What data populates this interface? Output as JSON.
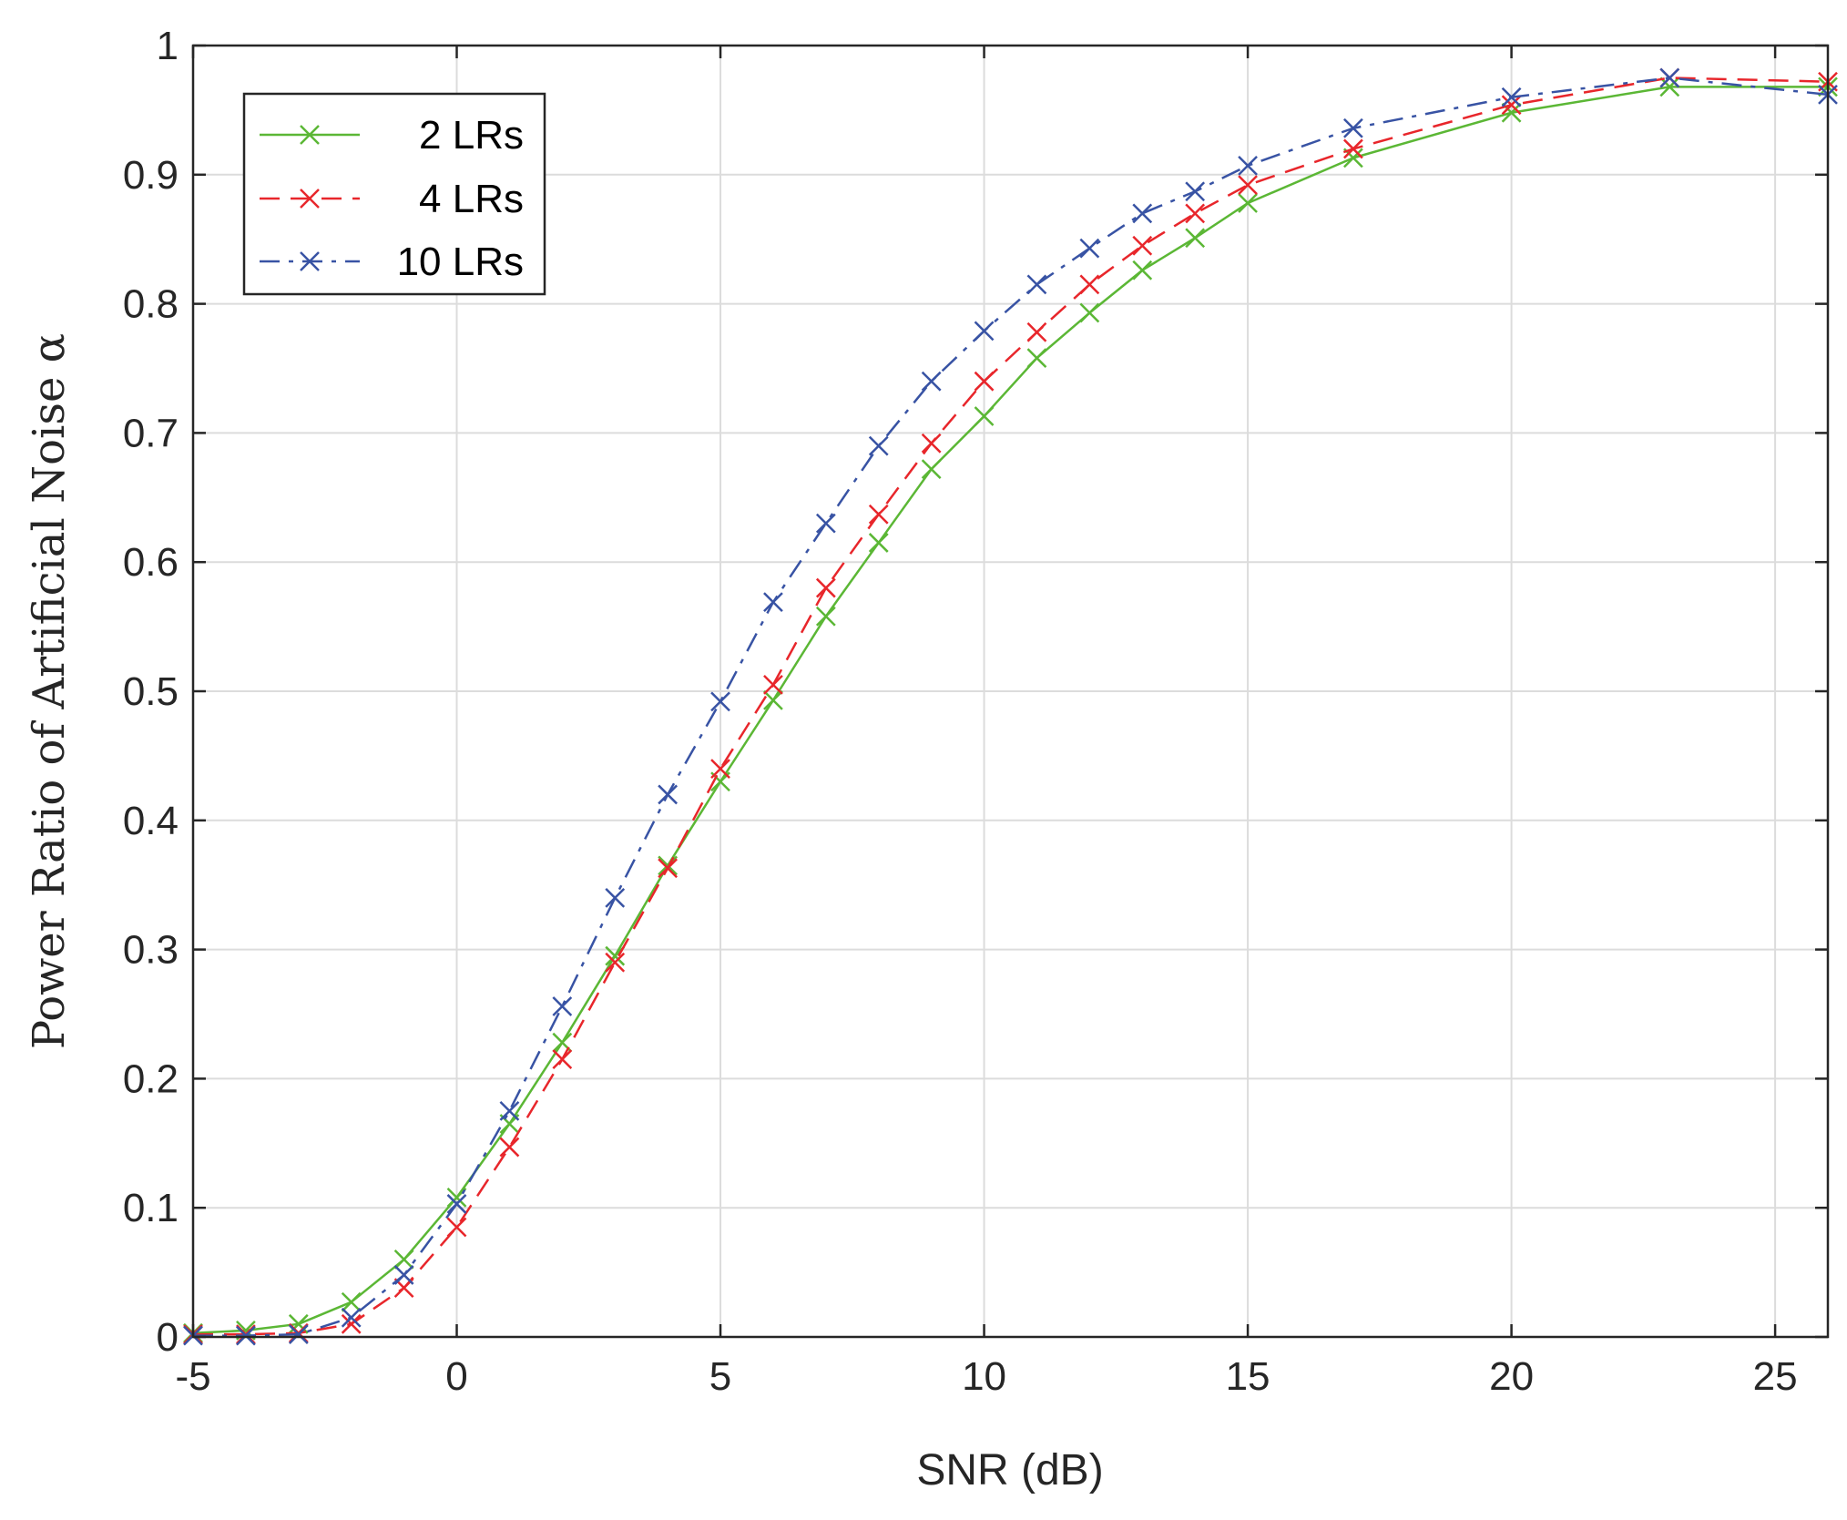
{
  "chart_data": {
    "type": "line",
    "title": "",
    "xlabel": "SNR (dB)",
    "ylabel": "Power Ratio of Artificial Noise α",
    "xlim": [
      -5,
      26
    ],
    "ylim": [
      0,
      1
    ],
    "xticks": [
      -5,
      0,
      5,
      10,
      15,
      20,
      25
    ],
    "yticks": [
      0,
      0.1,
      0.2,
      0.3,
      0.4,
      0.5,
      0.6,
      0.7,
      0.8,
      0.9,
      1
    ],
    "xtick_labels": [
      "-5",
      "0",
      "5",
      "10",
      "15",
      "20",
      "25"
    ],
    "ytick_labels": [
      "0",
      "0.1",
      "0.2",
      "0.3",
      "0.4",
      "0.5",
      "0.6",
      "0.7",
      "0.8",
      "0.9",
      "1"
    ],
    "grid": true,
    "legend_position": "top-left",
    "x": [
      -5,
      -4,
      -3,
      -2,
      -1,
      0,
      1,
      2,
      3,
      4,
      5,
      6,
      7,
      8,
      9,
      10,
      11,
      12,
      13,
      14,
      15,
      17,
      20,
      23,
      26
    ],
    "series": [
      {
        "name": "2 LRs",
        "color": "#5bb735",
        "dash": "solid",
        "marker": "x",
        "values": [
          0.003,
          0.005,
          0.01,
          0.027,
          0.06,
          0.108,
          0.165,
          0.228,
          0.295,
          0.365,
          0.43,
          0.493,
          0.558,
          0.615,
          0.672,
          0.713,
          0.758,
          0.793,
          0.826,
          0.851,
          0.878,
          0.913,
          0.948,
          0.968,
          0.968
        ]
      },
      {
        "name": "4 LRs",
        "color": "#e8262b",
        "dash": "dashed",
        "marker": "x",
        "values": [
          0.002,
          0.002,
          0.003,
          0.01,
          0.038,
          0.085,
          0.147,
          0.215,
          0.29,
          0.363,
          0.44,
          0.505,
          0.58,
          0.637,
          0.692,
          0.74,
          0.778,
          0.815,
          0.845,
          0.87,
          0.892,
          0.92,
          0.954,
          0.975,
          0.972
        ]
      },
      {
        "name": "10 LRs",
        "color": "#3853a4",
        "dash": "dashdot",
        "marker": "x",
        "values": [
          0.001,
          0.001,
          0.002,
          0.015,
          0.048,
          0.103,
          0.175,
          0.256,
          0.34,
          0.42,
          0.492,
          0.569,
          0.63,
          0.69,
          0.74,
          0.779,
          0.815,
          0.843,
          0.87,
          0.887,
          0.907,
          0.936,
          0.96,
          0.975,
          0.962
        ]
      }
    ]
  }
}
